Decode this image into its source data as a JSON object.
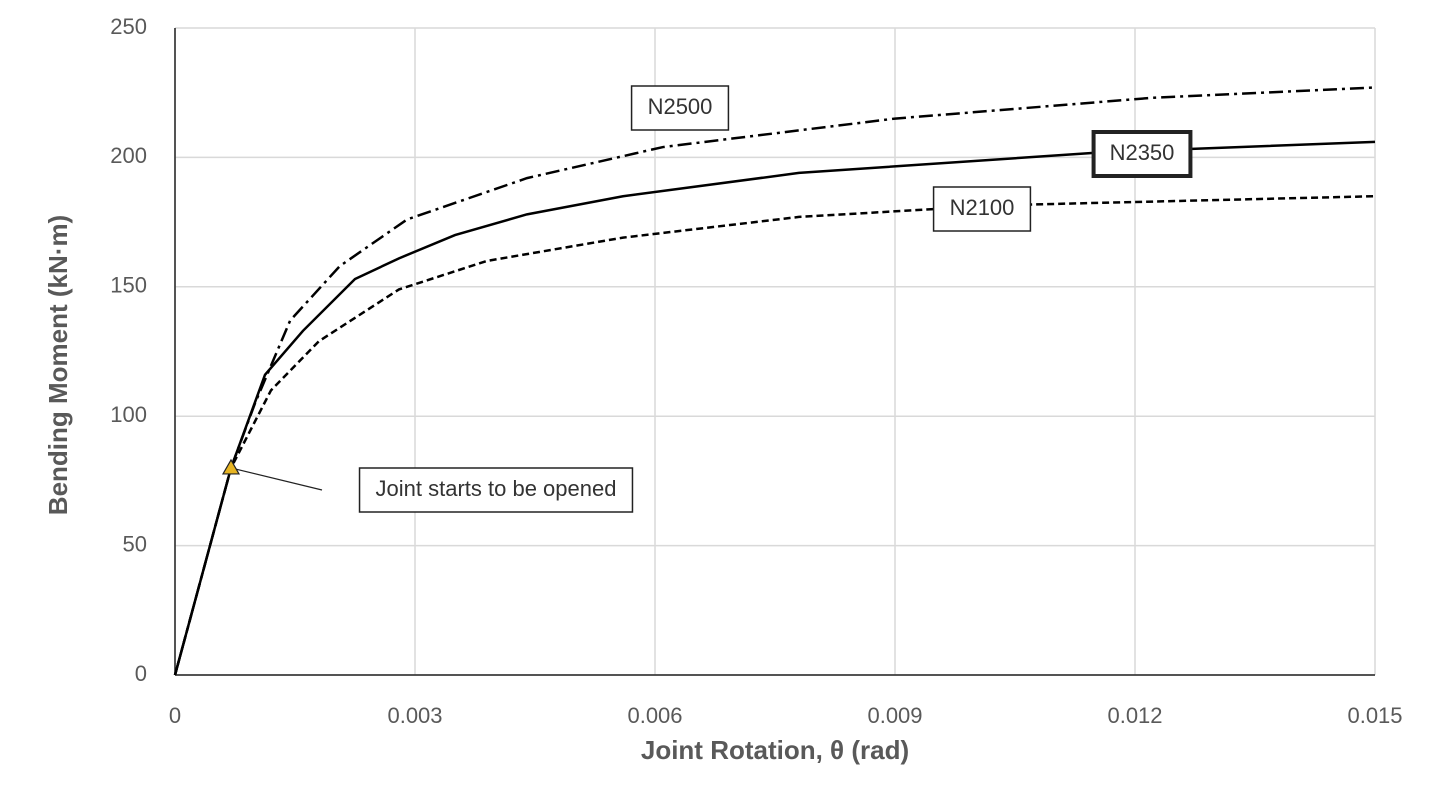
{
  "chart_data": {
    "type": "line",
    "xlabel": "Joint Rotation, θ (rad)",
    "ylabel": "Bending Moment (kN·m)",
    "xlim": [
      0,
      0.015
    ],
    "xticks": [
      0,
      0.003,
      0.006,
      0.009,
      0.012,
      0.015
    ],
    "ylim": [
      0,
      250
    ],
    "yticks": [
      0,
      50,
      100,
      150,
      200,
      250
    ],
    "grid": true,
    "series": [
      {
        "name": "N2500",
        "color": "#000000",
        "dash": "dash-dot",
        "x": [
          0,
          0.0007,
          0.001,
          0.00144,
          0.00206,
          0.0029,
          0.0044,
          0.0061,
          0.009,
          0.0122,
          0.015
        ],
        "values": [
          0,
          80,
          105,
          137,
          158,
          176,
          192,
          204,
          215,
          223,
          227
        ]
      },
      {
        "name": "N2350",
        "color": "#000000",
        "dash": "solid",
        "x": [
          0,
          0.0007,
          0.001125,
          0.0016,
          0.00225,
          0.0028,
          0.0035,
          0.0044,
          0.0056,
          0.0078,
          0.0116,
          0.015
        ],
        "values": [
          0,
          80,
          116,
          133,
          153,
          161,
          170,
          178,
          185,
          194,
          202,
          206
        ]
      },
      {
        "name": "N2100",
        "color": "#000000",
        "dash": "dashed",
        "x": [
          0,
          0.0007,
          0.0012,
          0.0018,
          0.0028,
          0.0039,
          0.0056,
          0.0078,
          0.0103,
          0.015
        ],
        "values": [
          0,
          80,
          110,
          129,
          149,
          160,
          169,
          177,
          181.5,
          185
        ]
      }
    ],
    "annotation": {
      "text": "Joint starts to be opened",
      "x": 0.0007,
      "y": 80,
      "color": "#e6b422"
    }
  }
}
